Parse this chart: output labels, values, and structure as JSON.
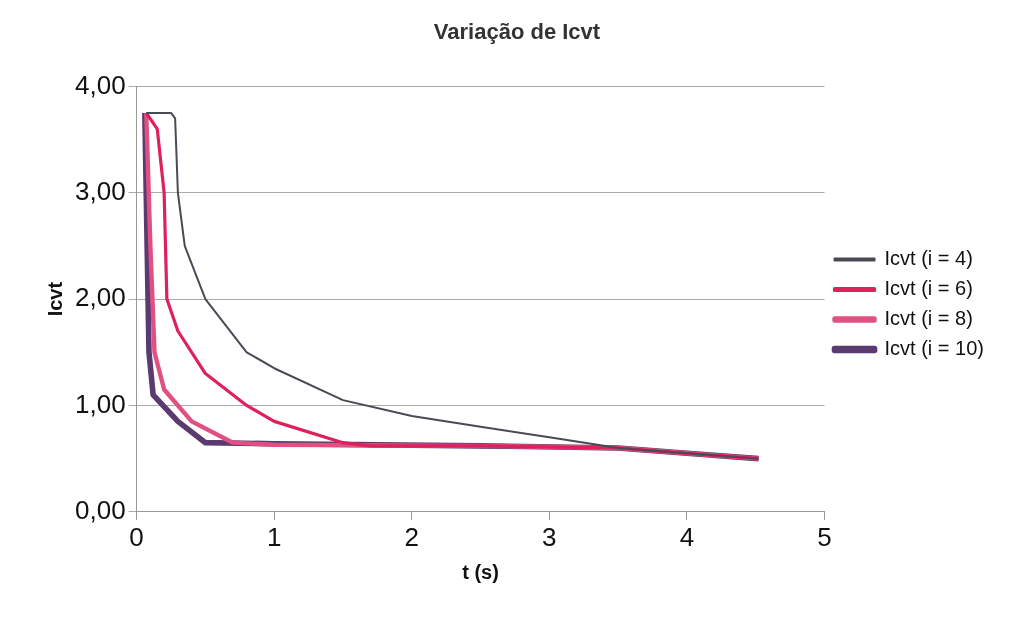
{
  "chart_data": {
    "type": "line",
    "title": "Variação de Icvt",
    "xlabel": "t (s)",
    "ylabel": "Icvt",
    "xlim": [
      0,
      5
    ],
    "xticks": [
      0,
      1,
      2,
      3,
      4,
      5
    ],
    "ylim": [
      0,
      4
    ],
    "yticks": [
      {
        "value": 0,
        "label": "0,00"
      },
      {
        "value": 1,
        "label": "1,00"
      },
      {
        "value": 2,
        "label": "2,00"
      },
      {
        "value": 3,
        "label": "3,00"
      },
      {
        "value": 4,
        "label": "4,00"
      }
    ],
    "grid": "y",
    "legend": "right",
    "marker": "none",
    "line_style": "solid",
    "series": [
      {
        "name": "Icvt (i = 4)",
        "color": "#4a4a55",
        "x": [
          0.07,
          0.25,
          0.28,
          0.3,
          0.35,
          0.5,
          0.8,
          1,
          1.5,
          2,
          2.5,
          3,
          3.5,
          4,
          4.52
        ],
        "values": [
          3.75,
          3.75,
          3.7,
          3.0,
          2.5,
          2.0,
          1.5,
          1.35,
          1.05,
          0.9,
          0.8,
          0.7,
          0.6,
          0.55,
          0.5
        ]
      },
      {
        "name": "Icvt (i = 6)",
        "color": "#e0205a",
        "x": [
          0.07,
          0.15,
          0.2,
          0.22,
          0.3,
          0.5,
          0.8,
          1,
          1.5,
          1.7,
          2.5,
          3.5,
          4,
          4.52
        ],
        "values": [
          3.75,
          3.6,
          3.0,
          2.0,
          1.7,
          1.3,
          1.0,
          0.85,
          0.65,
          0.62,
          0.62,
          0.6,
          0.55,
          0.5
        ]
      },
      {
        "name": "Icvt (i = 8)",
        "color": "#e05080",
        "x": [
          0.07,
          0.1,
          0.13,
          0.2,
          0.4,
          0.7,
          1,
          2.5,
          3.5,
          4,
          4.52
        ],
        "values": [
          3.75,
          2.5,
          1.5,
          1.15,
          0.85,
          0.65,
          0.63,
          0.62,
          0.6,
          0.55,
          0.5
        ]
      },
      {
        "name": "Icvt (i = 10)",
        "color": "#5a3a70",
        "x": [
          0.06,
          0.09,
          0.12,
          0.3,
          0.5,
          1,
          2.5,
          3.5,
          4,
          4.52
        ],
        "values": [
          3.75,
          1.5,
          1.1,
          0.85,
          0.65,
          0.64,
          0.62,
          0.6,
          0.55,
          0.5
        ]
      }
    ]
  }
}
